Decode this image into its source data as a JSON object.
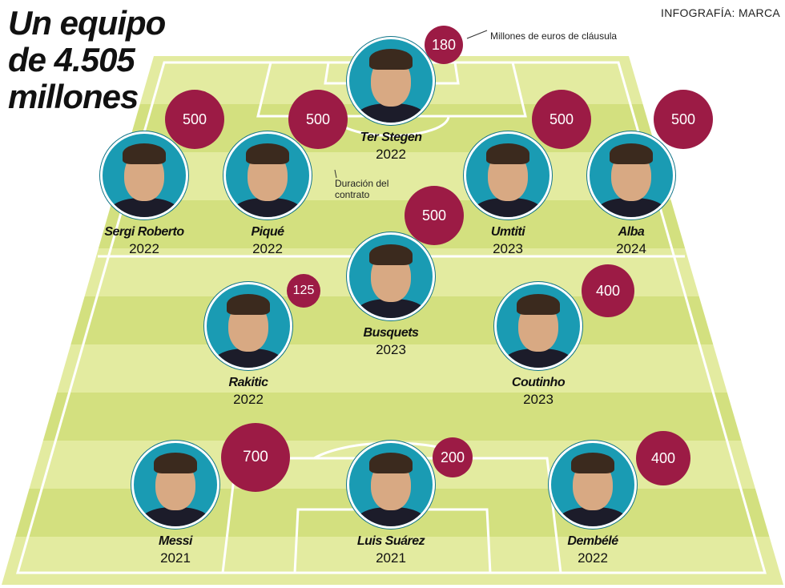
{
  "header": {
    "title_lines": [
      "Un equipo",
      "de 4.505",
      "millones"
    ],
    "credit": "INFOGRAFÍA: MARCA"
  },
  "legend": {
    "clause_note": "Millones de euros de cláusula",
    "contract_note_line1": "Duración del",
    "contract_note_line2": "contrato"
  },
  "colors": {
    "pitch_light": "#e3eba0",
    "pitch_dark": "#d3e07f",
    "pitch_line": "#ffffff",
    "avatar_ring": "#1a9bb3",
    "clause_bubble": "#9c1b45"
  },
  "players": [
    {
      "name": "Ter Stegen",
      "contract": "2022",
      "clause": "180"
    },
    {
      "name": "Sergi Roberto",
      "contract": "2022",
      "clause": "500"
    },
    {
      "name": "Piqué",
      "contract": "2022",
      "clause": "500"
    },
    {
      "name": "Umtiti",
      "contract": "2023",
      "clause": "500"
    },
    {
      "name": "Alba",
      "contract": "2024",
      "clause": "500"
    },
    {
      "name": "Busquets",
      "contract": "2023",
      "clause": "500"
    },
    {
      "name": "Rakitic",
      "contract": "2022",
      "clause": "125"
    },
    {
      "name": "Coutinho",
      "contract": "2023",
      "clause": "400"
    },
    {
      "name": "Messi",
      "contract": "2021",
      "clause": "700"
    },
    {
      "name": "Luis Suárez",
      "contract": "2021",
      "clause": "200"
    },
    {
      "name": "Dembélé",
      "contract": "2022",
      "clause": "400"
    }
  ]
}
